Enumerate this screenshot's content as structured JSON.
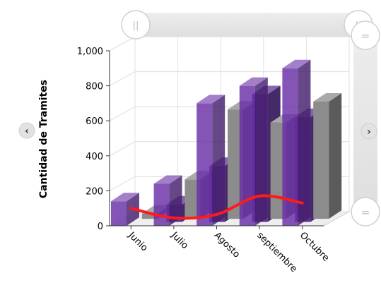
{
  "chart_data": {
    "type": "bar",
    "categories": [
      "Junio",
      "Julio",
      "Agosto",
      "septiembre",
      "Octubre"
    ],
    "ylabel": "Cantidad de Tramites",
    "ylim": [
      0,
      1000
    ],
    "y_ticks": [
      "0",
      "200",
      "400",
      "600",
      "800",
      "1,000"
    ],
    "series": [
      {
        "kind": "bar",
        "values": [
          140,
          240,
          700,
          800,
          900
        ],
        "color": "#6a2fa8"
      },
      {
        "kind": "bar",
        "values": [
          0,
          100,
          320,
          730,
          600
        ],
        "color": "#4f1f86"
      },
      {
        "kind": "bar",
        "values": [
          30,
          225,
          625,
          550,
          670
        ],
        "color": "#8c8c8c"
      },
      {
        "kind": "line",
        "values": [
          100,
          45,
          65,
          170,
          130
        ],
        "color": "#ff1a1a"
      }
    ],
    "grid": true
  },
  "controls": {
    "scroll_left_icon": "‹",
    "scroll_right_icon": "›",
    "range_handle_icon": "||",
    "vertical_handle_icon": "="
  }
}
